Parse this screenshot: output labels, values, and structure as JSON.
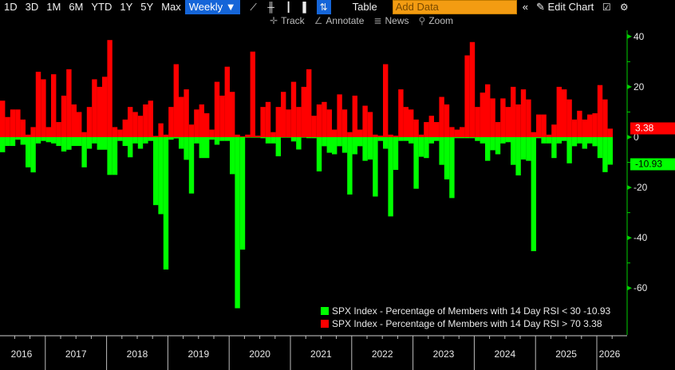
{
  "toolbar": {
    "ranges": [
      "1D",
      "3D",
      "1M",
      "6M",
      "YTD",
      "1Y",
      "5Y",
      "Max"
    ],
    "frequency": "Weekly ▼",
    "chart_type_icons": [
      "line-chart-icon",
      "ohlc-chart-icon",
      "candle-chart-icon",
      "bar-chart-icon",
      "histogram-chart-icon"
    ],
    "table_label": "Table",
    "add_data_placeholder": "Add Data",
    "collapse_glyph": "«",
    "edit_chart_label": "Edit Chart"
  },
  "subtoolbar": {
    "track": "Track",
    "annotate": "Annotate",
    "news": "News",
    "zoom": "Zoom"
  },
  "chart_data": {
    "type": "bar",
    "x_start": "2016-04",
    "x_frequency": "monthly (approx. from weekly bars)",
    "xtick_labels": [
      "2016",
      "2017",
      "2018",
      "2019",
      "2020",
      "2021",
      "2022",
      "2023",
      "2024",
      "2025",
      "2026"
    ],
    "ytick_labels": [
      "40",
      "20",
      "0",
      "-20",
      "-40",
      "-60"
    ],
    "ylim": [
      -70,
      44
    ],
    "grid": false,
    "legend_position": "bottom-right",
    "series": [
      {
        "name": "SPX Index - Percentage of Members with 14 Day RSI < 30",
        "last": "-10.93",
        "color": "#00ff00",
        "values": [
          -6,
          -3.5,
          -3.5,
          -1,
          -3,
          -12,
          -14,
          -2.5,
          -1.5,
          -2,
          -2.5,
          -3.5,
          -5.7,
          -5,
          -3.5,
          -3.5,
          -12,
          -4.6,
          -2.5,
          -5,
          -5,
          -15,
          -15,
          -1.5,
          -3.5,
          -8,
          -2.5,
          -4.6,
          -2.5,
          -1.5,
          -27,
          -30.6,
          -52.6,
          -1,
          -0.5,
          -4.6,
          -9,
          -22.4,
          -2.5,
          -8.3,
          -8.3,
          -1,
          -3,
          -1.5,
          -1.5,
          -14.7,
          -68,
          -44.7,
          -0.2,
          -0.2,
          -0.2,
          -0.4,
          -2.5,
          -2.5,
          -7.6,
          -0.2,
          -0.2,
          -1.7,
          -4.9,
          -0.2,
          -0.4,
          -0.4,
          -13.6,
          -3.6,
          -6.2,
          -6.8,
          -3.6,
          -6.2,
          -22.8,
          -6.8,
          -3.6,
          -9.4,
          -8.9,
          -23.6,
          -1.5,
          -4.6,
          -31.5,
          -13,
          -1.5,
          -1.5,
          -2.5,
          -20.5,
          -7.8,
          -8.3,
          -2.5,
          -1.5,
          -11,
          -16.8,
          -24.2,
          -0.4,
          -0.4,
          -0.4,
          -0.4,
          -1.5,
          -2.5,
          -9.4,
          -5.2,
          -6.8,
          -2.5,
          -2,
          -11,
          -15.2,
          -8.9,
          -9.4,
          -45.3,
          -0.4,
          -2.5,
          -2.5,
          -8.3,
          -2.5,
          -1.5,
          -10.4,
          -3.6,
          -2.5,
          -4.6,
          -2.5,
          -3.6,
          -8.3,
          -13.9,
          -10.93
        ]
      },
      {
        "name": "SPX Index - Percentage of Members with 14 Day RSI > 70",
        "last": "3.38",
        "color": "#ff0000",
        "values": [
          14.5,
          8,
          11,
          11,
          7,
          1,
          4,
          26,
          23,
          4,
          25,
          6,
          16.5,
          27,
          13,
          10,
          2,
          12,
          23,
          20,
          24,
          38.6,
          4,
          3,
          7,
          12,
          10,
          8.5,
          13,
          14.5,
          0.5,
          5.5,
          1,
          12,
          29,
          16,
          19,
          5,
          11,
          13,
          9.5,
          3,
          22,
          16.5,
          28,
          18,
          1,
          0.3,
          1,
          34,
          0.6,
          12,
          14,
          2,
          12,
          18,
          11,
          22,
          12,
          20,
          27,
          8.5,
          13,
          14,
          11,
          3,
          17,
          11,
          2,
          16.5,
          3,
          12.5,
          10,
          1,
          0.6,
          29,
          1,
          0.6,
          19,
          12,
          11,
          7,
          1,
          6,
          8.5,
          6,
          16,
          13,
          4,
          3,
          4,
          32.5,
          37.8,
          12,
          17.7,
          21,
          15.4,
          6,
          15.4,
          12,
          20,
          13,
          19,
          15,
          2,
          9,
          9,
          1,
          5,
          20,
          19,
          15,
          7,
          10.5,
          7,
          9,
          9.5,
          20.7,
          15,
          3.38
        ]
      }
    ]
  }
}
